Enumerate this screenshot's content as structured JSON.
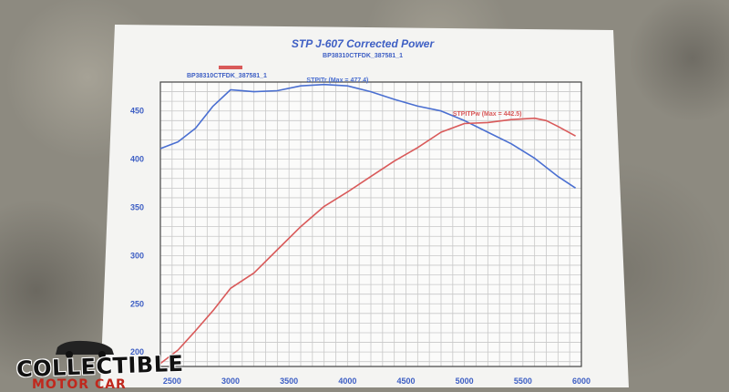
{
  "chart_data": {
    "type": "line",
    "title": "STP J-607 Corrected Power",
    "subtitle": "BP38310CTFDK_387581_1",
    "legend_label": "BP38310CTFDK_387581_1",
    "x": [
      2400,
      2500,
      2650,
      2800,
      3000,
      3200,
      3400,
      3600,
      3800,
      4000,
      4200,
      4400,
      4600,
      4800,
      5000,
      5200,
      5400,
      5600,
      5800,
      5950
    ],
    "x_ticks": [
      2500,
      3000,
      3500,
      4000,
      4500,
      5000,
      5500,
      6000
    ],
    "y_ticks": [
      200,
      250,
      300,
      350,
      400,
      450
    ],
    "xlim": [
      2400,
      6000
    ],
    "ylim": [
      185,
      480
    ],
    "grid": true,
    "series": [
      {
        "name": "STPITr (Max = 477.4)",
        "color": "#4a6fd1",
        "x": [
          2400,
          2550,
          2700,
          2850,
          3000,
          3200,
          3400,
          3600,
          3800,
          4000,
          4200,
          4400,
          4600,
          4800,
          5000,
          5200,
          5400,
          5600,
          5800,
          5950
        ],
        "values": [
          411,
          418,
          432,
          455,
          472,
          470,
          471,
          476,
          477.4,
          476,
          470,
          462,
          455,
          450,
          440,
          428,
          416,
          401,
          382,
          370
        ]
      },
      {
        "name": "STPITPw (Max = 442.5)",
        "color": "#d95a5a",
        "x": [
          2400,
          2550,
          2700,
          2850,
          3000,
          3200,
          3400,
          3600,
          3800,
          4000,
          4200,
          4400,
          4600,
          4800,
          5000,
          5200,
          5400,
          5600,
          5700,
          5800,
          5950
        ],
        "values": [
          188,
          202,
          222,
          243,
          266,
          282,
          306,
          330,
          351,
          366,
          382,
          398,
          412,
          428,
          437,
          438,
          441,
          442.5,
          440,
          434,
          424
        ]
      }
    ],
    "annotations": [
      {
        "text": "STPITr (Max = 477.4)",
        "x": 3650,
        "y": 480
      },
      {
        "text": "STPITPw (Max = 442.5)",
        "x": 4900,
        "y": 445
      }
    ]
  },
  "logo": {
    "word": "COLLECTIBLE",
    "sub": "MOTOR CAR"
  },
  "colors": {
    "paper": "#f4f4f2",
    "grid": "#c8c8c8",
    "axis": "#444444",
    "text_blue": "#3e5fc4",
    "legend_swatch": "#d95a5a"
  }
}
